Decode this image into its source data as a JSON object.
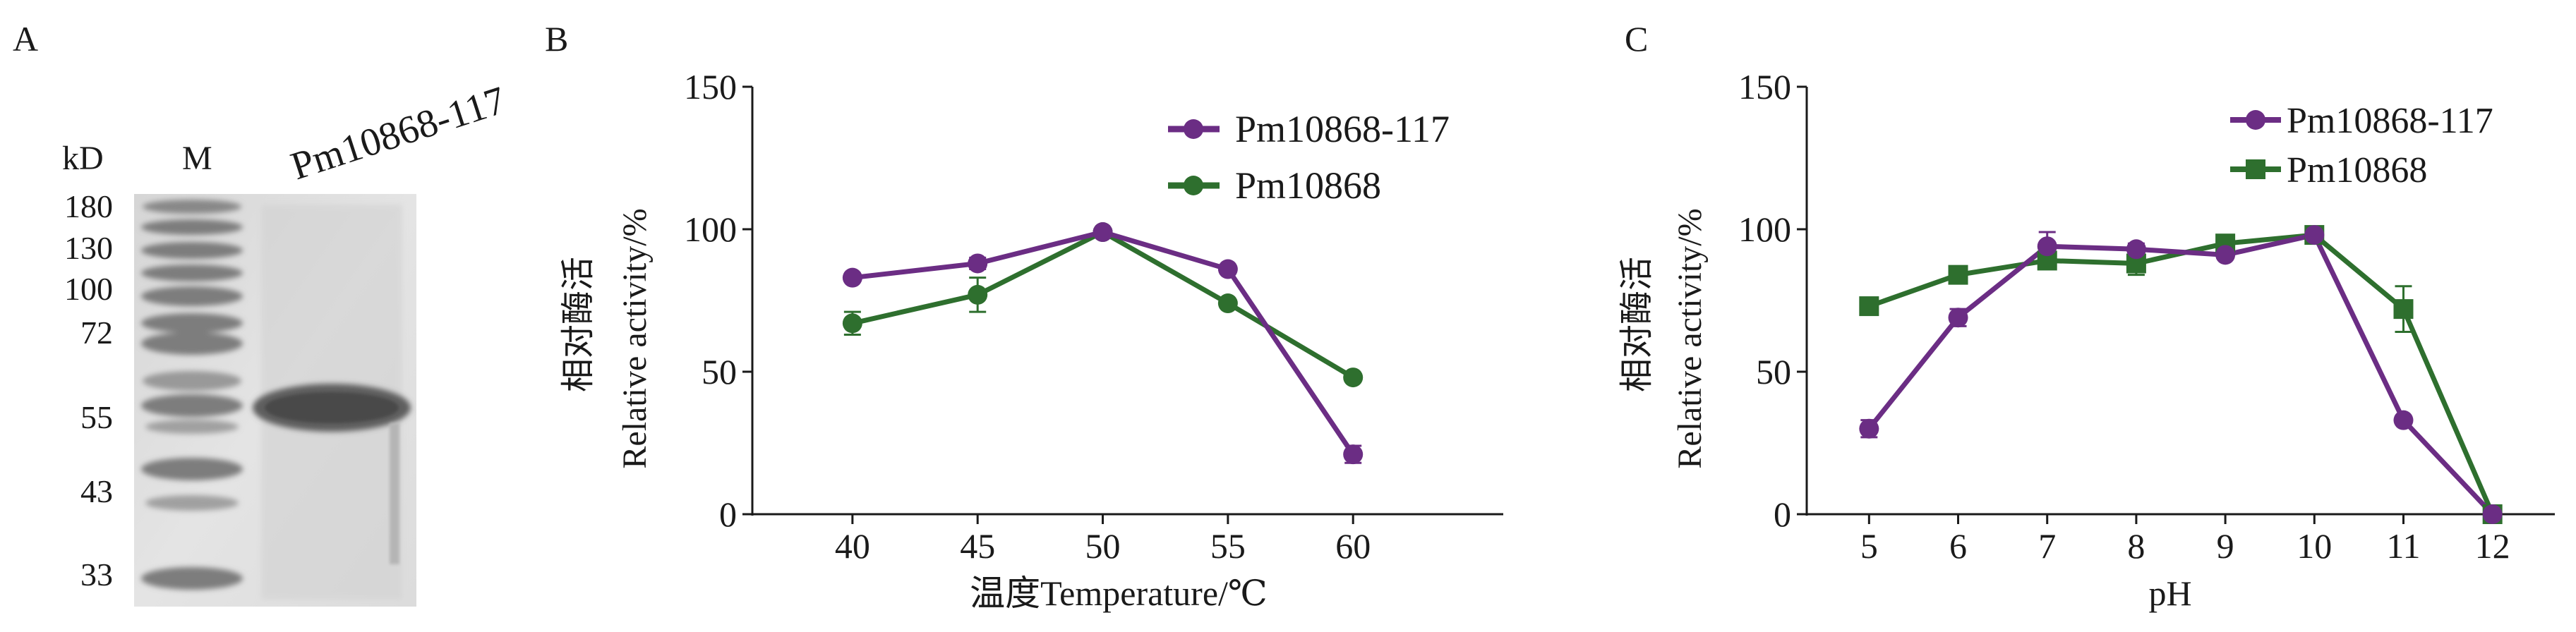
{
  "figure": {
    "panel_a": {
      "letter": "A",
      "kd_label": "kD",
      "marker_label": "M",
      "sample_label": "Pm10868-117",
      "markers": [
        "180",
        "130",
        "100",
        "72",
        "55",
        "43",
        "33"
      ]
    },
    "panel_b": {
      "letter": "B",
      "ylabel_cn": "相对酶活",
      "ylabel_en": "Relative activity/%",
      "xlabel": "温度Temperature/℃"
    },
    "panel_c": {
      "letter": "C",
      "ylabel_cn": "相对酶活",
      "ylabel_en": "Relative activity/%",
      "xlabel": "pH"
    }
  },
  "chart_data": [
    {
      "type": "line",
      "panel": "B",
      "title": "",
      "xlabel": "温度Temperature/℃",
      "ylabel": "相对酶活 Relative activity/%",
      "x": [
        40,
        45,
        50,
        55,
        60
      ],
      "xlim": [
        36,
        66
      ],
      "ylim": [
        0,
        150
      ],
      "xticks": [
        40,
        45,
        50,
        55,
        60
      ],
      "yticks": [
        0,
        50,
        100,
        150
      ],
      "legend_position": "top-right",
      "series": [
        {
          "name": "Pm10868-117",
          "color": "#6b2d84",
          "marker": "circle",
          "values": [
            83,
            88,
            99,
            86,
            21
          ],
          "errors": [
            0,
            2,
            0,
            0,
            3
          ]
        },
        {
          "name": "Pm10868",
          "color": "#2e6f2e",
          "marker": "circle",
          "values": [
            67,
            77,
            99,
            74,
            48
          ],
          "errors": [
            4,
            6,
            0,
            0,
            0
          ]
        }
      ]
    },
    {
      "type": "line",
      "panel": "C",
      "title": "",
      "xlabel": "pH",
      "ylabel": "相对酶活 Relative activity/%",
      "x": [
        5,
        6,
        7,
        8,
        9,
        10,
        11,
        12
      ],
      "xlim": [
        4.3,
        12.7
      ],
      "ylim": [
        0,
        150
      ],
      "xticks": [
        5,
        6,
        7,
        8,
        9,
        10,
        11,
        12
      ],
      "yticks": [
        0,
        50,
        100,
        150
      ],
      "legend_position": "top-right",
      "series": [
        {
          "name": "Pm10868-117",
          "color": "#6b2d84",
          "marker": "circle",
          "values": [
            30,
            69,
            94,
            93,
            91,
            98,
            33,
            0
          ],
          "errors": [
            3,
            3,
            5,
            2,
            0,
            2,
            0,
            0
          ]
        },
        {
          "name": "Pm10868",
          "color": "#2e6f2e",
          "marker": "square",
          "values": [
            73,
            84,
            89,
            88,
            95,
            98,
            72,
            0
          ],
          "errors": [
            0,
            0,
            3,
            4,
            0,
            0,
            8,
            0
          ]
        }
      ]
    }
  ]
}
